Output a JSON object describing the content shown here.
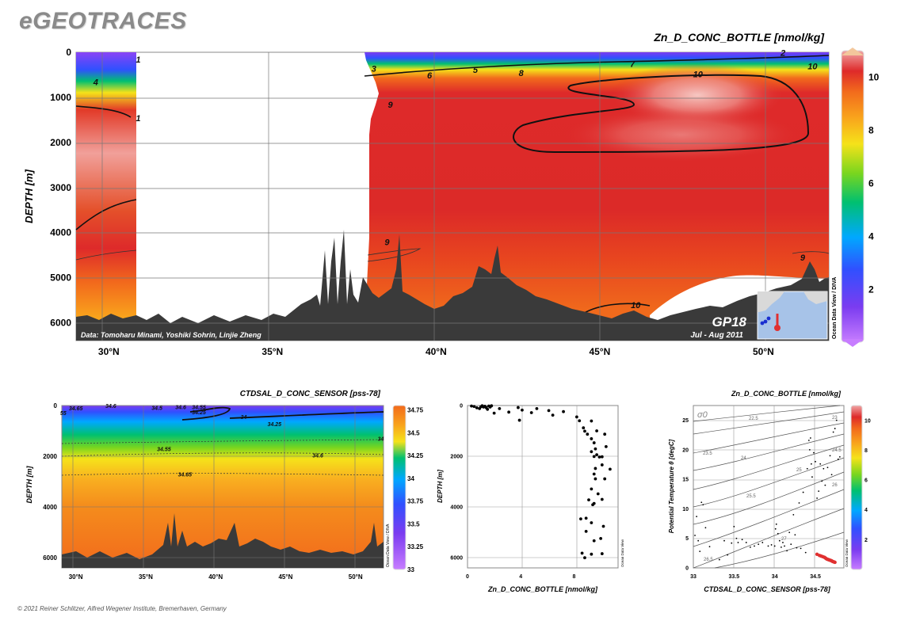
{
  "brand": "eGEOTRACES",
  "copyright": "© 2021 Reiner Schlitzer, Alfred Wegener Institute, Bremerhaven, Germany",
  "colors": {
    "terrain": "#3a3a3a",
    "contour": "#111111",
    "station_highlight": "#e03030",
    "station_other": "#1a2fd0",
    "colormap": [
      "#c77dff",
      "#7b3cf0",
      "#3050ff",
      "#00a8ff",
      "#00c070",
      "#7ad61e",
      "#f5e21a",
      "#f9a41c",
      "#f26a1c",
      "#de2a2a",
      "#f0a6a6"
    ]
  },
  "chart_data": [
    {
      "id": "main_section",
      "type": "heatmap",
      "title": "Zn_D_CONC_BOTTLE [nmol/kg]",
      "xlabel": "",
      "ylabel": "DEPTH [m]",
      "xlim": [
        29,
        52
      ],
      "ylim": [
        6400,
        0
      ],
      "xticks": [
        "30°N",
        "35°N",
        "40°N",
        "45°N",
        "50°N"
      ],
      "xtick_values": [
        30,
        35,
        40,
        45,
        50
      ],
      "yticks": [
        "0",
        "1000",
        "2000",
        "3000",
        "4000",
        "5000",
        "6000"
      ],
      "ytick_values": [
        0,
        1000,
        2000,
        3000,
        4000,
        5000,
        6000
      ],
      "colorbar": {
        "min": 0,
        "max": 11,
        "ticks": [
          "2",
          "4",
          "6",
          "8",
          "10"
        ],
        "tick_values": [
          2,
          4,
          6,
          8,
          10
        ],
        "caption": "Ocean Data View / DIVA"
      },
      "contour_labels": [
        {
          "text": "1",
          "lat": 30.9,
          "depth": 150
        },
        {
          "text": "4",
          "lat": 29.6,
          "depth": 650
        },
        {
          "text": "1",
          "lat": 30.9,
          "depth": 1450
        },
        {
          "text": "3",
          "lat": 38.1,
          "depth": 350
        },
        {
          "text": "6",
          "lat": 39.8,
          "depth": 500
        },
        {
          "text": "5",
          "lat": 41.2,
          "depth": 380
        },
        {
          "text": "8",
          "lat": 42.6,
          "depth": 450
        },
        {
          "text": "7",
          "lat": 46.0,
          "depth": 250
        },
        {
          "text": "2",
          "lat": 50.6,
          "depth": 0
        },
        {
          "text": "10",
          "lat": 51.5,
          "depth": 300
        },
        {
          "text": "10",
          "lat": 48.0,
          "depth": 480
        },
        {
          "text": "9",
          "lat": 38.6,
          "depth": 1150
        },
        {
          "text": "9",
          "lat": 38.5,
          "depth": 4200
        },
        {
          "text": "9",
          "lat": 51.2,
          "depth": 4550
        },
        {
          "text": "10",
          "lat": 46.1,
          "depth": 5600
        }
      ],
      "annotations": {
        "credit": "Data: Tomoharu Minami, Yoshiki Sohrin, Linjie Zheng",
        "cruise": "GP18",
        "date": "Jul - Aug 2011"
      }
    },
    {
      "id": "salinity_section",
      "type": "heatmap",
      "title": "CTDSAL_D_CONC_SENSOR [pss-78]",
      "xlabel": "",
      "ylabel": "DEPTH [m]",
      "xlim": [
        29,
        52
      ],
      "ylim": [
        6400,
        0
      ],
      "xticks": [
        "30°N",
        "35°N",
        "40°N",
        "45°N",
        "50°N"
      ],
      "xtick_values": [
        30,
        35,
        40,
        45,
        50
      ],
      "yticks": [
        "0",
        "2000",
        "4000",
        "6000"
      ],
      "ytick_values": [
        0,
        2000,
        4000,
        6000
      ],
      "colorbar": {
        "min": 33,
        "max": 34.8,
        "ticks": [
          "34.75",
          "34.5",
          "34.25",
          "34",
          "33.75",
          "33.5",
          "33.25",
          "33"
        ],
        "tick_values": [
          34.75,
          34.5,
          34.25,
          34,
          33.75,
          33.5,
          33.25,
          33
        ],
        "caption": "Ocean Data View / DIVA"
      },
      "contour_labels": [
        {
          "text": "34.65",
          "lat": 30.0,
          "depth": 100
        },
        {
          "text": "55",
          "lat": 29.1,
          "depth": 280
        },
        {
          "text": "34.6",
          "lat": 32.5,
          "depth": -20
        },
        {
          "text": "34.5",
          "lat": 35.8,
          "depth": 80
        },
        {
          "text": "34.6",
          "lat": 37.5,
          "depth": 60
        },
        {
          "text": "34.55",
          "lat": 38.8,
          "depth": 60
        },
        {
          "text": "34.25",
          "lat": 38.8,
          "depth": 250
        },
        {
          "text": "34",
          "lat": 42.0,
          "depth": 450
        },
        {
          "text": "34.25",
          "lat": 44.2,
          "depth": 720
        },
        {
          "text": "34.55",
          "lat": 36.3,
          "depth": 1700
        },
        {
          "text": "34.6",
          "lat": 47.3,
          "depth": 1950
        },
        {
          "text": "34.65",
          "lat": 37.8,
          "depth": 2700
        },
        {
          "text": "34",
          "lat": 51.8,
          "depth": 1300
        }
      ]
    },
    {
      "id": "profile_scatter",
      "type": "scatter",
      "title": "",
      "xlabel": "Zn_D_CONC_BOTTLE [nmol/kg]",
      "ylabel": "DEPTH [m]",
      "xlim": [
        0,
        11.3
      ],
      "ylim": [
        6400,
        0
      ],
      "xticks": [
        "0",
        "4",
        "8"
      ],
      "xtick_values": [
        0,
        4,
        8
      ],
      "yticks": [
        "0",
        "2000",
        "4000",
        "6000"
      ],
      "ytick_values": [
        0,
        2000,
        4000,
        6000
      ],
      "caption": "Ocean Data View",
      "points": [
        [
          0.3,
          20
        ],
        [
          0.5,
          40
        ],
        [
          0.7,
          90
        ],
        [
          0.9,
          120
        ],
        [
          1.0,
          50
        ],
        [
          1.1,
          10
        ],
        [
          1.2,
          60
        ],
        [
          1.3,
          30
        ],
        [
          1.4,
          80
        ],
        [
          1.5,
          150
        ],
        [
          1.6,
          20
        ],
        [
          1.7,
          60
        ],
        [
          1.8,
          10
        ],
        [
          2.0,
          300
        ],
        [
          2.4,
          120
        ],
        [
          3.1,
          260
        ],
        [
          3.8,
          80
        ],
        [
          4.1,
          180
        ],
        [
          3.9,
          580
        ],
        [
          4.8,
          280
        ],
        [
          5.2,
          120
        ],
        [
          6.1,
          200
        ],
        [
          6.4,
          380
        ],
        [
          7.2,
          240
        ],
        [
          8.2,
          450
        ],
        [
          8.4,
          600
        ],
        [
          8.7,
          880
        ],
        [
          8.8,
          1010
        ],
        [
          9.0,
          1130
        ],
        [
          9.3,
          1310
        ],
        [
          9.5,
          1470
        ],
        [
          9.6,
          1710
        ],
        [
          9.3,
          1820
        ],
        [
          9.7,
          1940
        ],
        [
          9.5,
          2010
        ],
        [
          9.9,
          2030
        ],
        [
          10.1,
          2020
        ],
        [
          10.3,
          1130
        ],
        [
          10.4,
          1620
        ],
        [
          10.1,
          2340
        ],
        [
          9.6,
          2480
        ],
        [
          10.7,
          2510
        ],
        [
          9.5,
          2700
        ],
        [
          9.6,
          2890
        ],
        [
          10.3,
          2890
        ],
        [
          9.3,
          3290
        ],
        [
          9.8,
          3480
        ],
        [
          10.1,
          3700
        ],
        [
          9.1,
          3720
        ],
        [
          9.5,
          3860
        ],
        [
          9.4,
          3910
        ],
        [
          8.9,
          4440
        ],
        [
          8.5,
          4470
        ],
        [
          9.3,
          4620
        ],
        [
          10.2,
          4760
        ],
        [
          8.9,
          4960
        ],
        [
          10.0,
          5240
        ],
        [
          9.5,
          5330
        ],
        [
          8.6,
          5820
        ],
        [
          9.3,
          5860
        ],
        [
          8.8,
          6000
        ],
        [
          10.1,
          5840
        ],
        [
          9.3,
          610
        ],
        [
          9.7,
          1000
        ]
      ]
    },
    {
      "id": "ts_scatter",
      "type": "scatter",
      "title": "Zn_D_CONC_BOTTLE [nmol/kg]",
      "xlabel": "CTDSAL_D_CONC_SENSOR [pss-78]",
      "ylabel": "Potential Temperature θ [degC]",
      "xlim": [
        33,
        34.85
      ],
      "ylim": [
        0,
        27.5
      ],
      "xticks": [
        "33",
        "33.5",
        "34",
        "34.5"
      ],
      "xtick_values": [
        33,
        33.5,
        34,
        34.5
      ],
      "yticks": [
        "0",
        "5",
        "10",
        "15",
        "20",
        "25"
      ],
      "ytick_values": [
        0,
        5,
        10,
        15,
        20,
        25
      ],
      "colorbar": {
        "min": 0,
        "max": 11,
        "ticks": [
          "2",
          "4",
          "6",
          "8",
          "10"
        ],
        "tick_values": [
          2,
          4,
          6,
          8,
          10
        ],
        "caption": "Ocean Data View"
      },
      "isopycnal_label": "σ0",
      "isopycnals": [
        "22.5",
        "23",
        "23.5",
        "24",
        "24.5",
        "25",
        "25.5",
        "26",
        "26.5",
        "27"
      ],
      "points_low_zn": [
        [
          33.02,
          5.5
        ],
        [
          33.04,
          8.7
        ],
        [
          33.06,
          4.6
        ],
        [
          33.08,
          2.8
        ],
        [
          33.1,
          11.1
        ],
        [
          33.12,
          10.7
        ],
        [
          33.15,
          6.8
        ],
        [
          33.2,
          3.6
        ],
        [
          33.32,
          1.4
        ],
        [
          33.38,
          4.6
        ],
        [
          33.42,
          2.2
        ],
        [
          33.47,
          4.2
        ],
        [
          33.5,
          7.0
        ],
        [
          33.53,
          5.0
        ],
        [
          33.55,
          4.3
        ],
        [
          33.6,
          4.8
        ],
        [
          33.65,
          4.3
        ],
        [
          33.7,
          3.5
        ],
        [
          33.75,
          3.7
        ],
        [
          33.8,
          4.0
        ],
        [
          33.85,
          4.3
        ],
        [
          33.92,
          3.7
        ],
        [
          33.96,
          3.9
        ],
        [
          34.0,
          3.7
        ],
        [
          34.01,
          6.6
        ],
        [
          34.02,
          7.4
        ],
        [
          34.04,
          5.8
        ],
        [
          34.06,
          4.6
        ],
        [
          34.08,
          3.5
        ],
        [
          34.1,
          4.3
        ],
        [
          34.12,
          3.7
        ],
        [
          34.15,
          2.9
        ],
        [
          34.18,
          6.0
        ],
        [
          34.2,
          4.0
        ],
        [
          34.23,
          9.0
        ],
        [
          34.25,
          5.6
        ],
        [
          34.27,
          3.4
        ],
        [
          34.3,
          11.0
        ],
        [
          34.32,
          3.3
        ],
        [
          34.35,
          12.8
        ],
        [
          34.38,
          2.6
        ],
        [
          34.4,
          16.8
        ],
        [
          34.42,
          21.6
        ],
        [
          34.43,
          20.0
        ],
        [
          34.44,
          22.0
        ],
        [
          34.45,
          17.6
        ],
        [
          34.46,
          15.4
        ],
        [
          34.48,
          19.5
        ],
        [
          34.5,
          18.0
        ],
        [
          34.52,
          11.8
        ],
        [
          34.54,
          13.0
        ],
        [
          34.56,
          17.6
        ],
        [
          34.58,
          14.7
        ],
        [
          34.6,
          16.8
        ],
        [
          34.62,
          14.0
        ],
        [
          34.65,
          17.0
        ],
        [
          34.68,
          19.0
        ],
        [
          34.7,
          15.8
        ],
        [
          34.72,
          23.0
        ],
        [
          34.74,
          23.6
        ],
        [
          34.76,
          25.0
        ],
        [
          34.78,
          18.4
        ],
        [
          34.8,
          18.8
        ]
      ],
      "points_high_zn": [
        [
          34.52,
          2.3
        ],
        [
          34.55,
          2.1
        ],
        [
          34.57,
          2.0
        ],
        [
          34.59,
          1.9
        ],
        [
          34.61,
          1.8
        ],
        [
          34.62,
          1.7
        ],
        [
          34.63,
          1.6
        ],
        [
          34.64,
          1.5
        ],
        [
          34.65,
          1.45
        ],
        [
          34.66,
          1.4
        ],
        [
          34.67,
          1.35
        ],
        [
          34.68,
          1.3
        ],
        [
          34.69,
          1.25
        ],
        [
          34.7,
          1.2
        ],
        [
          34.71,
          1.1
        ],
        [
          34.72,
          1.05
        ],
        [
          34.73,
          1.0
        ],
        [
          34.74,
          0.95
        ]
      ]
    }
  ]
}
